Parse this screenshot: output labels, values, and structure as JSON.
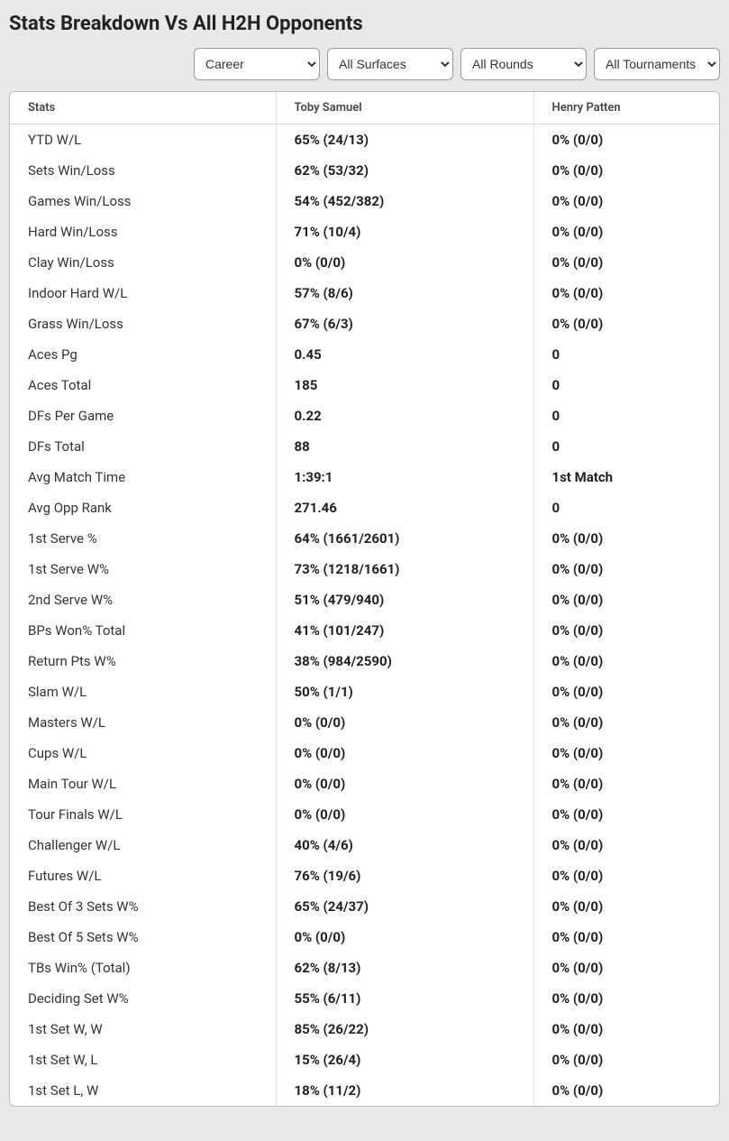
{
  "title": "Stats Breakdown Vs All H2H Opponents",
  "filters": {
    "career": {
      "selected": "Career"
    },
    "surface": {
      "selected": "All Surfaces"
    },
    "round": {
      "selected": "All Rounds"
    },
    "tournament": {
      "selected": "All Tournaments"
    }
  },
  "table": {
    "headers": {
      "stats": "Stats",
      "p1": "Toby Samuel",
      "p2": "Henry Patten"
    },
    "rows": [
      {
        "stat": "YTD W/L",
        "p1": "65% (24/13)",
        "p2": "0% (0/0)"
      },
      {
        "stat": "Sets Win/Loss",
        "p1": "62% (53/32)",
        "p2": "0% (0/0)"
      },
      {
        "stat": "Games Win/Loss",
        "p1": "54% (452/382)",
        "p2": "0% (0/0)"
      },
      {
        "stat": "Hard Win/Loss",
        "p1": "71% (10/4)",
        "p2": "0% (0/0)"
      },
      {
        "stat": "Clay Win/Loss",
        "p1": "0% (0/0)",
        "p2": "0% (0/0)"
      },
      {
        "stat": "Indoor Hard W/L",
        "p1": "57% (8/6)",
        "p2": "0% (0/0)"
      },
      {
        "stat": "Grass Win/Loss",
        "p1": "67% (6/3)",
        "p2": "0% (0/0)"
      },
      {
        "stat": "Aces Pg",
        "p1": "0.45",
        "p2": "0"
      },
      {
        "stat": "Aces Total",
        "p1": "185",
        "p2": "0"
      },
      {
        "stat": "DFs Per Game",
        "p1": "0.22",
        "p2": "0"
      },
      {
        "stat": "DFs Total",
        "p1": "88",
        "p2": "0"
      },
      {
        "stat": "Avg Match Time",
        "p1": "1:39:1",
        "p2": "1st Match"
      },
      {
        "stat": "Avg Opp Rank",
        "p1": "271.46",
        "p2": "0"
      },
      {
        "stat": "1st Serve %",
        "p1": "64% (1661/2601)",
        "p2": "0% (0/0)"
      },
      {
        "stat": "1st Serve W%",
        "p1": "73% (1218/1661)",
        "p2": "0% (0/0)"
      },
      {
        "stat": "2nd Serve W%",
        "p1": "51% (479/940)",
        "p2": "0% (0/0)"
      },
      {
        "stat": "BPs Won% Total",
        "p1": "41% (101/247)",
        "p2": "0% (0/0)"
      },
      {
        "stat": "Return Pts W%",
        "p1": "38% (984/2590)",
        "p2": "0% (0/0)"
      },
      {
        "stat": "Slam W/L",
        "p1": "50% (1/1)",
        "p2": "0% (0/0)"
      },
      {
        "stat": "Masters W/L",
        "p1": "0% (0/0)",
        "p2": "0% (0/0)"
      },
      {
        "stat": "Cups W/L",
        "p1": "0% (0/0)",
        "p2": "0% (0/0)"
      },
      {
        "stat": "Main Tour W/L",
        "p1": "0% (0/0)",
        "p2": "0% (0/0)"
      },
      {
        "stat": "Tour Finals W/L",
        "p1": "0% (0/0)",
        "p2": "0% (0/0)"
      },
      {
        "stat": "Challenger W/L",
        "p1": "40% (4/6)",
        "p2": "0% (0/0)"
      },
      {
        "stat": "Futures W/L",
        "p1": "76% (19/6)",
        "p2": "0% (0/0)"
      },
      {
        "stat": "Best Of 3 Sets W%",
        "p1": "65% (24/37)",
        "p2": "0% (0/0)"
      },
      {
        "stat": "Best Of 5 Sets W%",
        "p1": "0% (0/0)",
        "p2": "0% (0/0)"
      },
      {
        "stat": "TBs Win% (Total)",
        "p1": "62% (8/13)",
        "p2": "0% (0/0)"
      },
      {
        "stat": "Deciding Set W%",
        "p1": "55% (6/11)",
        "p2": "0% (0/0)"
      },
      {
        "stat": "1st Set W, W",
        "p1": "85% (26/22)",
        "p2": "0% (0/0)"
      },
      {
        "stat": "1st Set W, L",
        "p1": "15% (26/4)",
        "p2": "0% (0/0)"
      },
      {
        "stat": "1st Set L, W",
        "p1": "18% (11/2)",
        "p2": "0% (0/0)"
      }
    ]
  }
}
